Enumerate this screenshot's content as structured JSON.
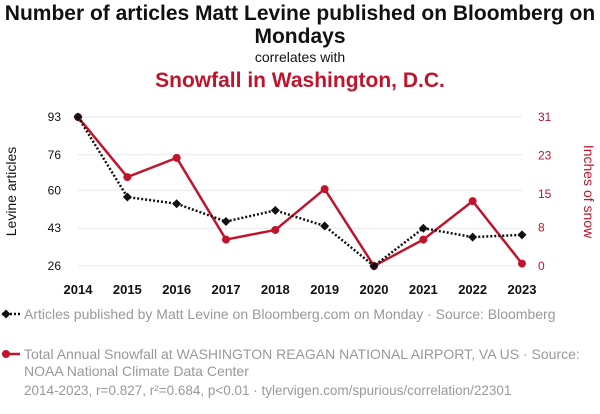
{
  "title": "Number of articles Matt Levine published on Bloomberg on Mondays",
  "correlates_with": "correlates with",
  "subtitle": "Snowfall in Washington, D.C.",
  "colors": {
    "series1": "#111111",
    "series2": "#c0142c",
    "grid": "#e8e8e8"
  },
  "legend": {
    "series1": "Articles published by Matt Levine on Bloomberg.com on Monday · Source: Bloomberg",
    "series2": "Total Annual Snowfall at WASHINGTON REAGAN NATIONAL AIRPORT, VA US · Source: NOAA National Climate Data Center"
  },
  "footer": "2014-2023, r=0.827, r²=0.684, p<0.01 · tylervigen.com/spurious/correlation/22301",
  "chart_data": {
    "type": "line",
    "x": [
      2014,
      2015,
      2016,
      2017,
      2018,
      2019,
      2020,
      2021,
      2022,
      2023
    ],
    "xticks": [
      "2014",
      "2015",
      "2016",
      "2017",
      "2018",
      "2019",
      "2020",
      "2021",
      "2022",
      "2023"
    ],
    "y_left": {
      "label": "Levine articles",
      "ticks": [
        26,
        43,
        60,
        76,
        93
      ],
      "range": [
        26,
        93
      ]
    },
    "y_right": {
      "label": "Inches of snow",
      "ticks": [
        0,
        8,
        15,
        23,
        31
      ],
      "range": [
        0,
        31
      ]
    },
    "grid": true,
    "series": [
      {
        "name": "Articles published by Matt Levine on Bloomberg.com on Monday",
        "axis": "left",
        "marker": "diamond",
        "style": "dotted",
        "values": [
          93,
          57,
          54,
          46,
          51,
          44,
          26,
          43,
          39,
          40
        ]
      },
      {
        "name": "Total Annual Snowfall at WASHINGTON REAGAN NATIONAL AIRPORT, VA US",
        "axis": "right",
        "marker": "circle",
        "style": "solid",
        "values": [
          31,
          18.5,
          22.5,
          5.5,
          7.5,
          16,
          0,
          5.5,
          13.5,
          0.5
        ]
      }
    ]
  }
}
